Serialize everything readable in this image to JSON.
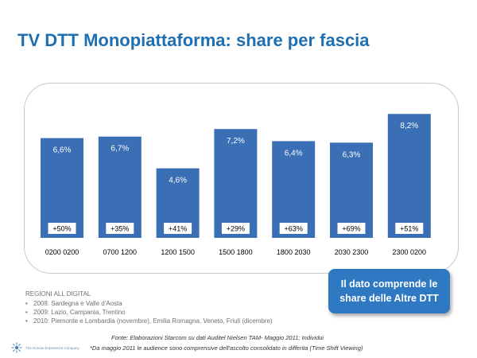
{
  "page": {
    "title": "TV DTT Monopiattaforma: share per fascia"
  },
  "chart_data": {
    "type": "bar",
    "categories": [
      "0200 0200",
      "0700 1200",
      "1200 1500",
      "1500 1800",
      "1800 2030",
      "2030 2300",
      "2300 0200"
    ],
    "values": [
      6.6,
      6.7,
      4.6,
      7.2,
      6.4,
      6.3,
      8.2
    ],
    "value_labels": [
      "6,6%",
      "6,7%",
      "4,6%",
      "7,2%",
      "6,4%",
      "6,3%",
      "8,2%"
    ],
    "growth_labels": [
      "+50%",
      "+35%",
      "+41%",
      "+29%",
      "+63%",
      "+69%",
      "+51%"
    ],
    "ylim": [
      0,
      9
    ],
    "grid": false,
    "bar_color": "#3a6fb5"
  },
  "callout": {
    "line1": "Il dato comprende le",
    "line2": "share delle Altre DTT"
  },
  "regions": {
    "heading": "REGIONI ALL DIGITAL",
    "items": [
      "2008: Sardegna e Valle d'Aosta",
      "2009: Lazio, Campania, Trentino",
      "2010: Piemonte e Lombardia (novembre), Emilia Romagna, Veneto, Friuli (dicembre)"
    ]
  },
  "footer": {
    "source": "Fonte: Elaborazioni Starcom su dati Auditel Nielsen TAM- Maggio 2011; Individui",
    "note": "*Da maggio 2011 le audience sono comprensive dell'ascolto consolidato in differita (Time Shift Viewing)",
    "brand": "The Human Experience Company"
  }
}
